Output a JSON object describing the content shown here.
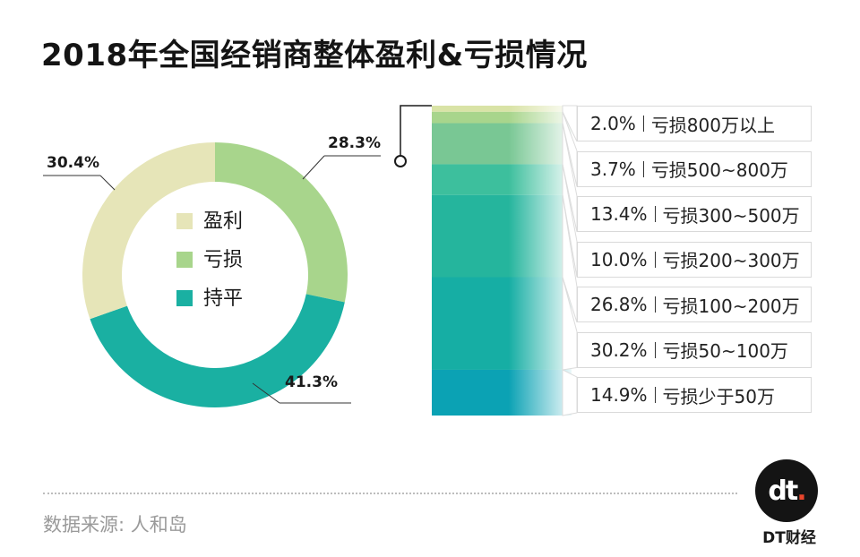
{
  "title": "2018年全国经销商整体盈利&亏损情况",
  "source": "数据来源: 人和岛",
  "brand": {
    "logo_text": "dt",
    "logo_dot": ".",
    "name": "DT财经"
  },
  "chart_data": [
    {
      "type": "pie",
      "donut": true,
      "slices": [
        {
          "label": "盈利",
          "value": 30.4,
          "display": "30.4%",
          "color": "#e6e5b8"
        },
        {
          "label": "亏损",
          "value": 28.3,
          "display": "28.3%",
          "color": "#a8d58c"
        },
        {
          "label": "持平",
          "value": 41.3,
          "display": "41.3%",
          "color": "#1ab0a2"
        }
      ],
      "legend_position": "center"
    },
    {
      "type": "bar",
      "stacked": true,
      "orientation": "vertical",
      "series": [
        {
          "category": "亏损800万以上",
          "value": 2.0,
          "display": "2.0%",
          "color": "#d9e3a6"
        },
        {
          "category": "亏损500~800万",
          "value": 3.7,
          "display": "3.7%",
          "color": "#a8d58c"
        },
        {
          "category": "亏损300~500万",
          "value": 13.4,
          "display": "13.4%",
          "color": "#79c794"
        },
        {
          "category": "亏损200~300万",
          "value": 10.0,
          "display": "10.0%",
          "color": "#3dbf9d"
        },
        {
          "category": "亏损100~200万",
          "value": 26.8,
          "display": "26.8%",
          "color": "#25b59d"
        },
        {
          "category": "亏损50~100万",
          "value": 30.2,
          "display": "30.2%",
          "color": "#16aea4"
        },
        {
          "category": "亏损少于50万",
          "value": 14.9,
          "display": "14.9%",
          "color": "#0ba2b4"
        }
      ]
    }
  ]
}
